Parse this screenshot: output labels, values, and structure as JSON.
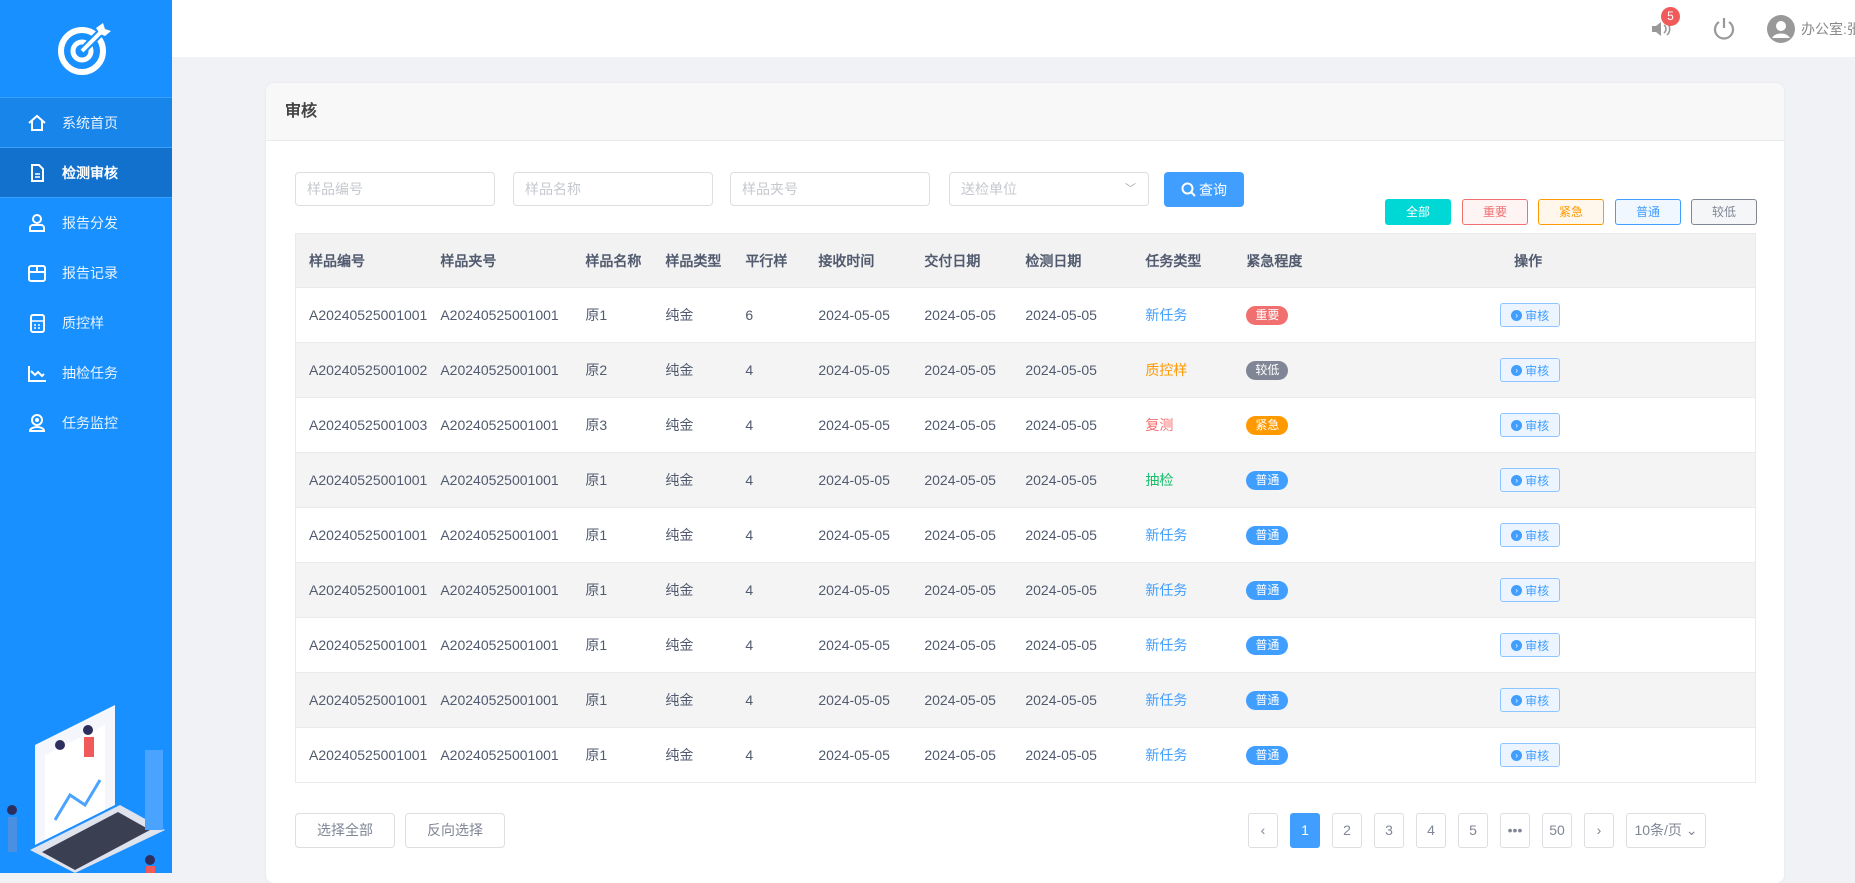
{
  "sidebar": {
    "items": [
      {
        "label": "系统首页",
        "icon": "home-icon"
      },
      {
        "label": "检测审核",
        "icon": "document-icon",
        "active": true
      },
      {
        "label": "报告分发",
        "icon": "user-group-icon"
      },
      {
        "label": "报告记录",
        "icon": "box-icon"
      },
      {
        "label": "质控样",
        "icon": "calculator-icon"
      },
      {
        "label": "抽检任务",
        "icon": "chart-icon"
      },
      {
        "label": "任务监控",
        "icon": "monitor-icon"
      }
    ]
  },
  "topbar": {
    "notifications": "5",
    "user": "办公室:张"
  },
  "card": {
    "title": "审核"
  },
  "filters": {
    "sample_no": "样品编号",
    "sample_name": "样品名称",
    "sample_clip": "样品夹号",
    "unit": "送检单位",
    "query": "查询"
  },
  "tags": [
    {
      "label": "全部",
      "color": "#00d8d6"
    },
    {
      "label": "重要",
      "color": "#f07070"
    },
    {
      "label": "紧急",
      "color": "#ff9900"
    },
    {
      "label": "普通",
      "color": "#409eff"
    },
    {
      "label": "较低",
      "color": "#808695"
    }
  ],
  "table": {
    "columns": [
      "样品编号",
      "样品夹号",
      "样品名称",
      "样品类型",
      "平行样",
      "接收时间",
      "交付日期",
      "检测日期",
      "任务类型",
      "紧急程度",
      "操作"
    ],
    "action_label": "审核",
    "task_colors": {
      "新任务": "#409eff",
      "质控样": "#ff9900",
      "复测": "#f56c6c",
      "抽检": "#19be6b"
    },
    "urgency_colors": {
      "重要": "#f07070",
      "较低": "#808695",
      "紧急": "#ff9900",
      "普通": "#409eff"
    },
    "rows": [
      [
        "A20240525001001",
        "A20240525001001",
        "原1",
        "纯金",
        "6",
        "2024-05-05",
        "2024-05-05",
        "2024-05-05",
        "新任务",
        "重要"
      ],
      [
        "A20240525001002",
        "A20240525001001",
        "原2",
        "纯金",
        "4",
        "2024-05-05",
        "2024-05-05",
        "2024-05-05",
        "质控样",
        "较低"
      ],
      [
        "A20240525001003",
        "A20240525001001",
        "原3",
        "纯金",
        "4",
        "2024-05-05",
        "2024-05-05",
        "2024-05-05",
        "复测",
        "紧急"
      ],
      [
        "A20240525001001",
        "A20240525001001",
        "原1",
        "纯金",
        "4",
        "2024-05-05",
        "2024-05-05",
        "2024-05-05",
        "抽检",
        "普通"
      ],
      [
        "A20240525001001",
        "A20240525001001",
        "原1",
        "纯金",
        "4",
        "2024-05-05",
        "2024-05-05",
        "2024-05-05",
        "新任务",
        "普通"
      ],
      [
        "A20240525001001",
        "A20240525001001",
        "原1",
        "纯金",
        "4",
        "2024-05-05",
        "2024-05-05",
        "2024-05-05",
        "新任务",
        "普通"
      ],
      [
        "A20240525001001",
        "A20240525001001",
        "原1",
        "纯金",
        "4",
        "2024-05-05",
        "2024-05-05",
        "2024-05-05",
        "新任务",
        "普通"
      ],
      [
        "A20240525001001",
        "A20240525001001",
        "原1",
        "纯金",
        "4",
        "2024-05-05",
        "2024-05-05",
        "2024-05-05",
        "新任务",
        "普通"
      ],
      [
        "A20240525001001",
        "A20240525001001",
        "原1",
        "纯金",
        "4",
        "2024-05-05",
        "2024-05-05",
        "2024-05-05",
        "新任务",
        "普通"
      ]
    ]
  },
  "footer": {
    "select_all": "选择全部",
    "invert": "反向选择"
  },
  "pagination": {
    "prev": "‹",
    "pages": [
      "1",
      "2",
      "3",
      "4",
      "5",
      "•••",
      "50"
    ],
    "current": "1",
    "next": "›",
    "page_size": "10条/页"
  }
}
